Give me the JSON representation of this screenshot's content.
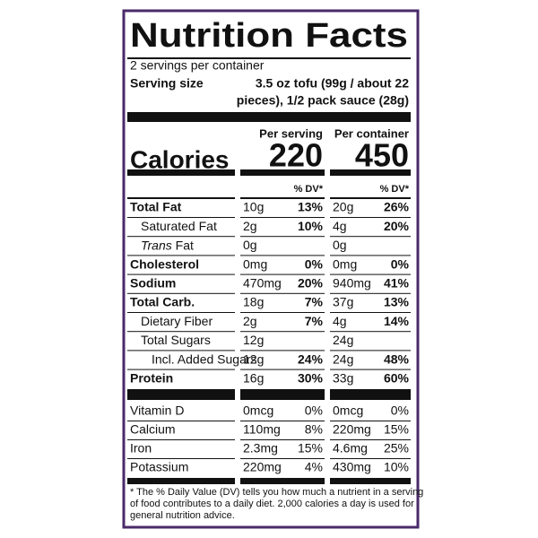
{
  "title": "Nutrition Facts",
  "servings": "2 servings per container",
  "serving_size_label": "Serving size",
  "serving_size_lines": [
    "3.5 oz tofu (99g / about 22",
    "pieces), 1/2 pack sauce (28g)"
  ],
  "columns": [
    "Per serving",
    "Per container"
  ],
  "calories": {
    "label": "Calories",
    "serving": "220",
    "container": "450"
  },
  "dv_headers": [
    "% DV*",
    "% DV*"
  ],
  "rows": [
    {
      "name": "Total Fat",
      "bold": true,
      "indent": 0,
      "serving": "10g",
      "serving_dv": "13%",
      "container": "20g",
      "container_dv": "26%"
    },
    {
      "name": "Saturated Fat",
      "bold": false,
      "indent": 1,
      "serving": "2g",
      "serving_dv": "10%",
      "container": "4g",
      "container_dv": "20%"
    },
    {
      "name_italic": "Trans",
      "name": "Fat",
      "bold": false,
      "indent": 1,
      "serving": "0g",
      "container": "0g"
    },
    {
      "name": "Cholesterol",
      "bold": true,
      "indent": 0,
      "serving": "0mg",
      "serving_dv": "0%",
      "container": "0mg",
      "container_dv": "0%"
    },
    {
      "name": "Sodium",
      "bold": true,
      "indent": 0,
      "serving": "470mg",
      "serving_dv": "20%",
      "container": "940mg",
      "container_dv": "41%"
    },
    {
      "name": "Total Carb.",
      "bold": true,
      "indent": 0,
      "serving": "18g",
      "serving_dv": "7%",
      "container": "37g",
      "container_dv": "13%"
    },
    {
      "name": "Dietary Fiber",
      "bold": false,
      "indent": 1,
      "serving": "2g",
      "serving_dv": "7%",
      "container": "4g",
      "container_dv": "14%"
    },
    {
      "name": "Total Sugars",
      "bold": false,
      "indent": 1,
      "serving": "12g",
      "container": "24g"
    },
    {
      "name": "Incl. Added Sugars",
      "bold": false,
      "indent": 2,
      "serving": "12g",
      "serving_dv": "24%",
      "container": "24g",
      "container_dv": "48%"
    },
    {
      "name": "Protein",
      "bold": true,
      "indent": 0,
      "serving": "16g",
      "serving_dv": "30%",
      "container": "33g",
      "container_dv": "60%"
    }
  ],
  "vitamins": [
    {
      "name": "Vitamin D",
      "serving": "0mcg",
      "serving_dv": "0%",
      "container": "0mcg",
      "container_dv": "0%"
    },
    {
      "name": "Calcium",
      "serving": "110mg",
      "serving_dv": "8%",
      "container": "220mg",
      "container_dv": "15%"
    },
    {
      "name": "Iron",
      "serving": "2.3mg",
      "serving_dv": "15%",
      "container": "4.6mg",
      "container_dv": "25%"
    },
    {
      "name": "Potassium",
      "serving": "220mg",
      "serving_dv": "4%",
      "container": "430mg",
      "container_dv": "10%"
    }
  ],
  "footnote_lines": [
    "* The % Daily Value (DV) tells you how much a nutrient in a serving",
    "of food contributes to a daily diet. 2,000 calories a day is used for",
    "general nutrition advice."
  ]
}
